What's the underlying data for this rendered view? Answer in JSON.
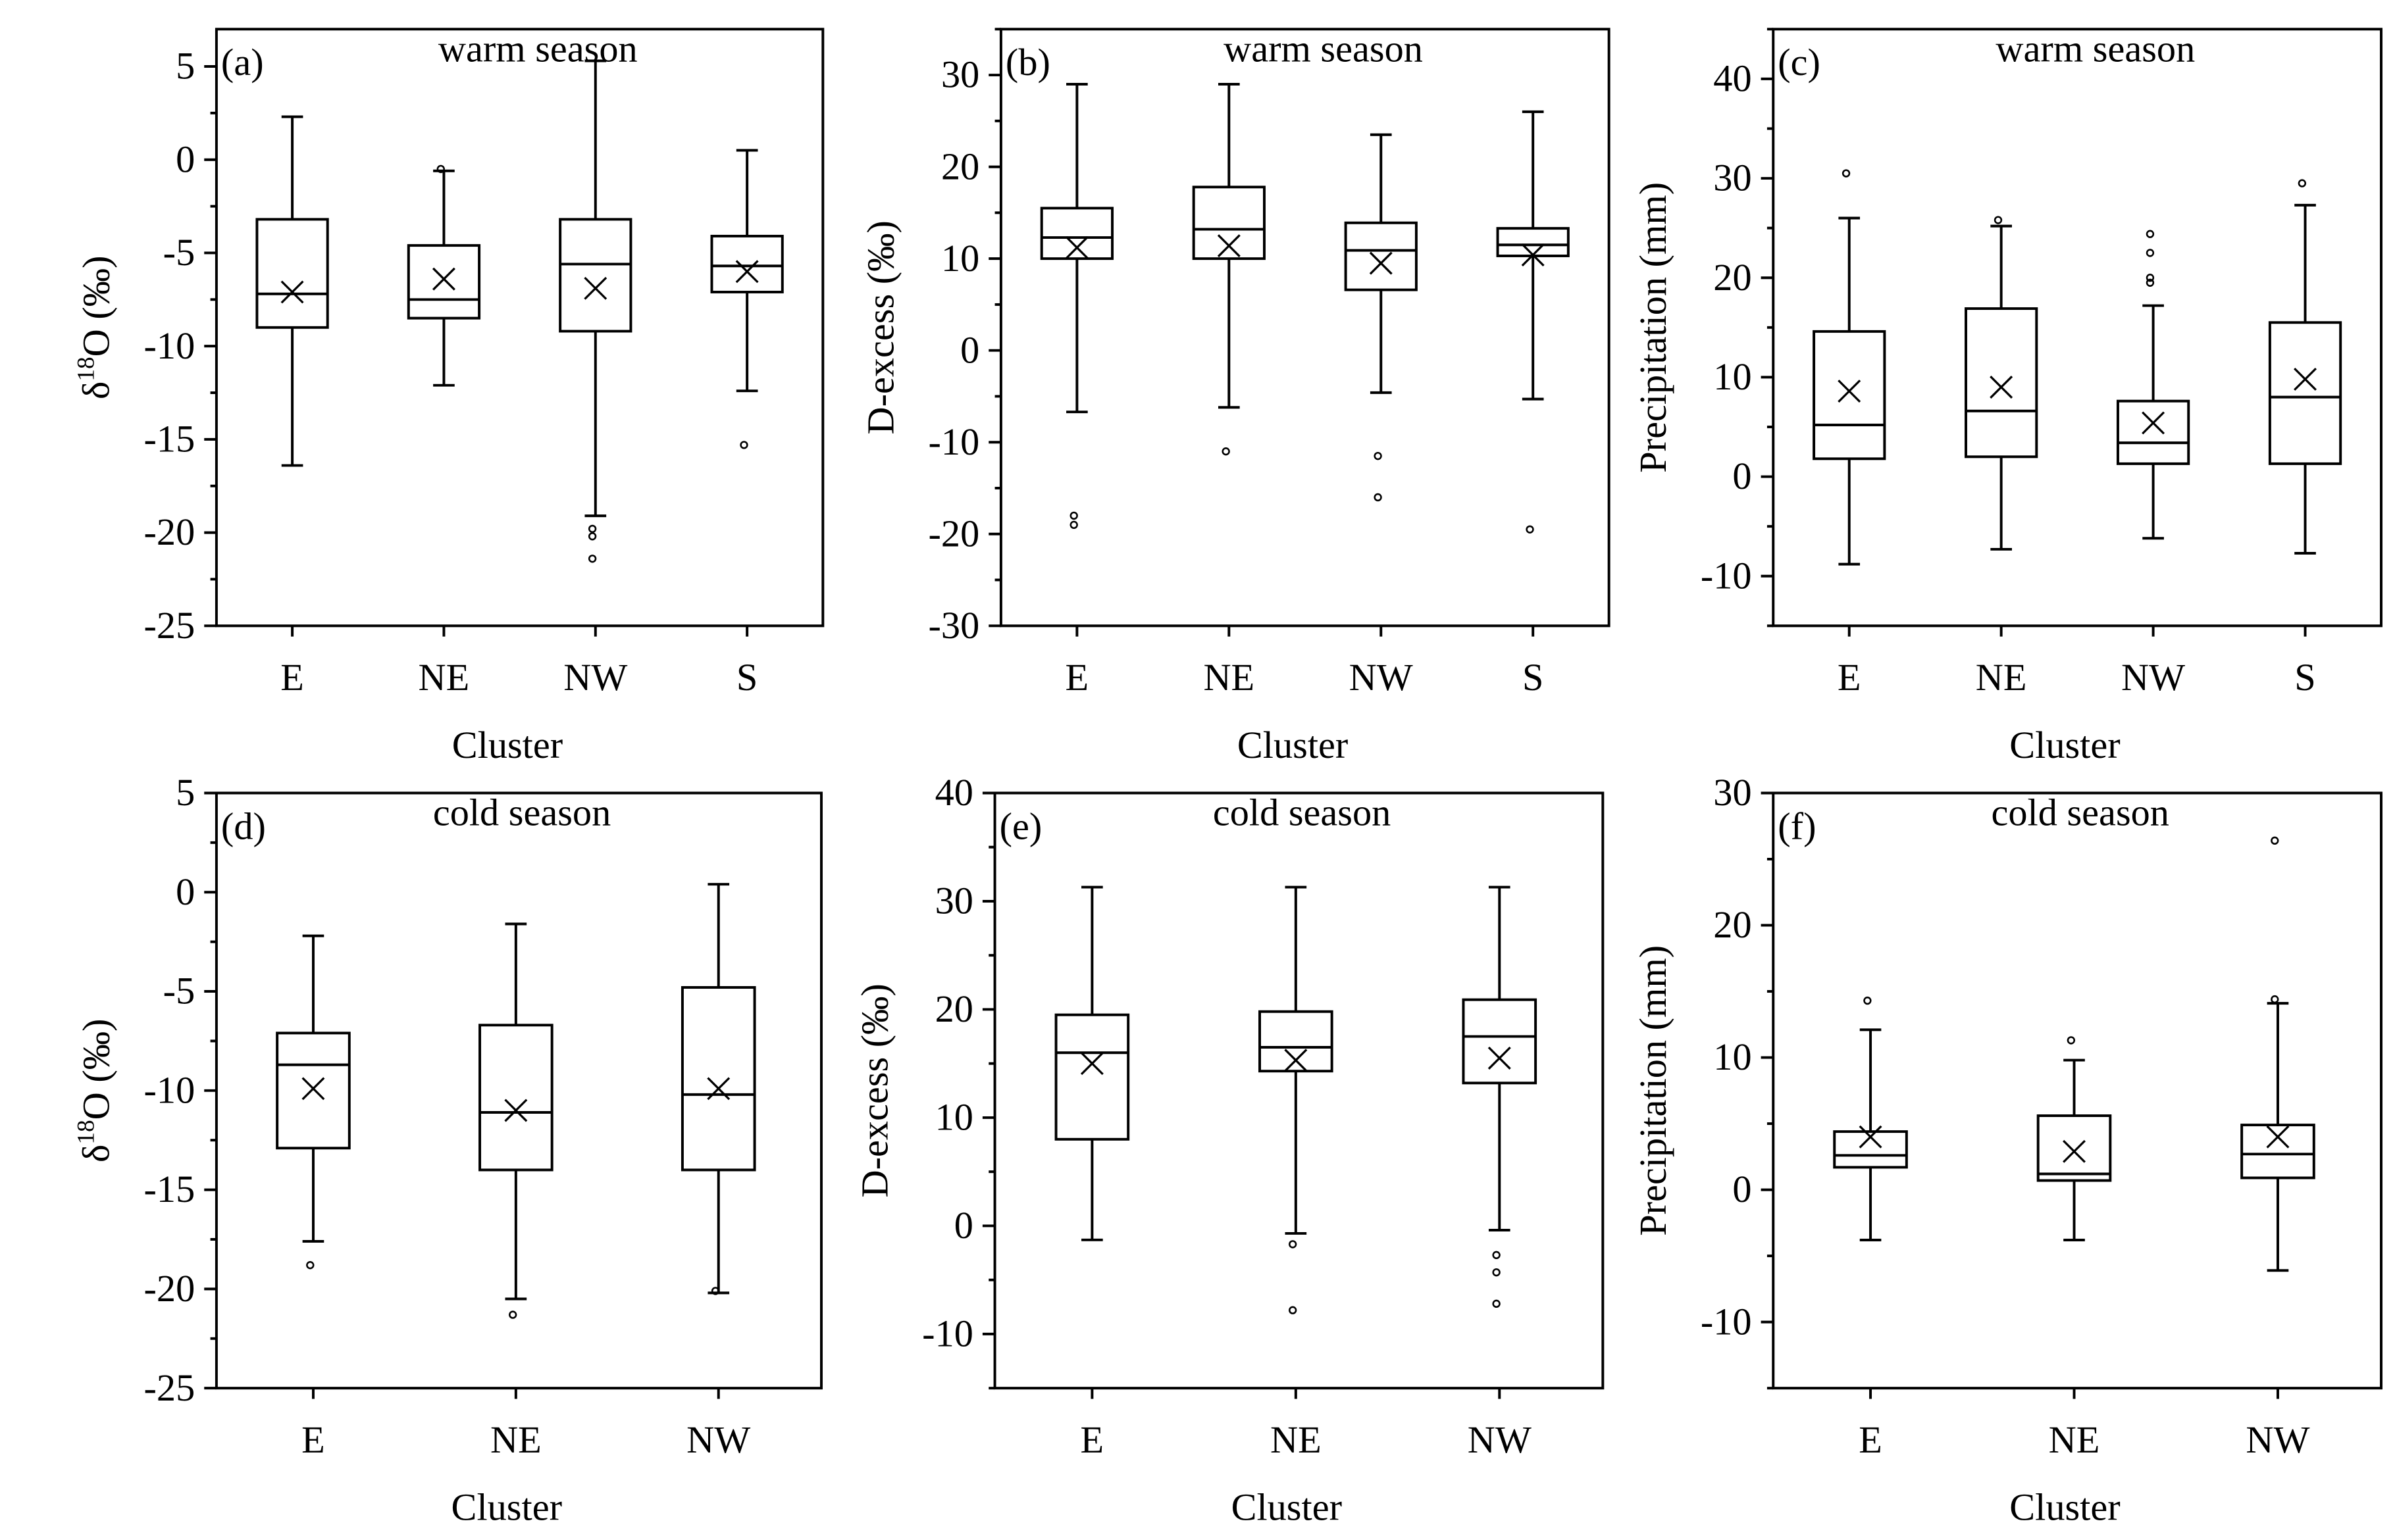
{
  "chart_data": [
    {
      "panel": "(a)",
      "title": "warm season",
      "type": "box",
      "xlabel": "Cluster",
      "ylabel": "δ18O (‰)",
      "ylabel_main": "δ",
      "ylabel_sup": "18",
      "ylabel_tail": "O (‰)",
      "ylim": [
        -25,
        7
      ],
      "yticks": [
        -25,
        -20,
        -15,
        -10,
        -5,
        0,
        5
      ],
      "categories": [
        "E",
        "NE",
        "NW",
        "S"
      ],
      "boxes": [
        {
          "q1": -9.0,
          "median": -7.2,
          "q3": -3.2,
          "whisker_low": -16.4,
          "whisker_high": 2.3,
          "mean": -7.1,
          "outliers": []
        },
        {
          "q1": -8.5,
          "median": -7.5,
          "q3": -4.6,
          "whisker_low": -12.1,
          "whisker_high": -0.6,
          "mean": -6.4,
          "outliers": [
            -0.5
          ]
        },
        {
          "q1": -9.2,
          "median": -5.6,
          "q3": -3.2,
          "whisker_low": -19.1,
          "whisker_high": 5.3,
          "mean": -6.9,
          "outliers": [
            -19.8,
            -20.2,
            -21.4
          ]
        },
        {
          "q1": -7.1,
          "median": -5.7,
          "q3": -4.1,
          "whisker_low": -12.4,
          "whisker_high": 0.5,
          "mean": -6.0,
          "outliers": [
            -15.3
          ]
        }
      ]
    },
    {
      "panel": "(b)",
      "title": "warm season",
      "type": "box",
      "xlabel": "Cluster",
      "ylabel": "D-excess (‰)",
      "ylim": [
        -30,
        35
      ],
      "yticks": [
        -30,
        -20,
        -10,
        0,
        10,
        20,
        30
      ],
      "categories": [
        "E",
        "NE",
        "NW",
        "S"
      ],
      "boxes": [
        {
          "q1": 10.0,
          "median": 12.3,
          "q3": 15.5,
          "whisker_low": -6.7,
          "whisker_high": 29.0,
          "mean": 11.2,
          "outliers": [
            -18.0,
            -19.0
          ]
        },
        {
          "q1": 10.0,
          "median": 13.2,
          "q3": 17.8,
          "whisker_low": -6.2,
          "whisker_high": 29.0,
          "mean": 11.4,
          "outliers": [
            -11.0
          ]
        },
        {
          "q1": 6.6,
          "median": 10.9,
          "q3": 13.9,
          "whisker_low": -4.6,
          "whisker_high": 23.5,
          "mean": 9.5,
          "outliers": [
            -11.5,
            -16.0
          ]
        },
        {
          "q1": 10.3,
          "median": 11.5,
          "q3": 13.3,
          "whisker_low": -5.3,
          "whisker_high": 26.0,
          "mean": 10.4,
          "outliers": [
            -19.5
          ]
        }
      ]
    },
    {
      "panel": "(c)",
      "title": "warm season",
      "type": "box",
      "xlabel": "Cluster",
      "ylabel": "Precipitation (mm)",
      "ylim": [
        -15,
        45
      ],
      "yticks": [
        -10,
        0,
        10,
        20,
        30,
        40
      ],
      "categories": [
        "E",
        "NE",
        "NW",
        "S"
      ],
      "boxes": [
        {
          "q1": 1.8,
          "median": 5.2,
          "q3": 14.6,
          "whisker_low": -8.8,
          "whisker_high": 26.0,
          "mean": 8.6,
          "outliers": [
            30.5
          ]
        },
        {
          "q1": 2.0,
          "median": 6.6,
          "q3": 16.9,
          "whisker_low": -7.3,
          "whisker_high": 25.2,
          "mean": 9.0,
          "outliers": [
            25.8
          ]
        },
        {
          "q1": 1.3,
          "median": 3.4,
          "q3": 7.6,
          "whisker_low": -6.2,
          "whisker_high": 17.2,
          "mean": 5.4,
          "outliers": [
            19.5,
            20.0,
            22.5,
            24.4
          ]
        },
        {
          "q1": 1.3,
          "median": 8.0,
          "q3": 15.5,
          "whisker_low": -7.7,
          "whisker_high": 27.3,
          "mean": 9.8,
          "outliers": [
            29.5
          ]
        }
      ]
    },
    {
      "panel": "(d)",
      "title": "cold season",
      "type": "box",
      "xlabel": "Cluster",
      "ylabel": "δ18O (‰)",
      "ylabel_main": "δ",
      "ylabel_sup": "18",
      "ylabel_tail": "O (‰)",
      "ylim": [
        -25,
        5
      ],
      "yticks": [
        -25,
        -20,
        -15,
        -10,
        -5,
        0,
        5
      ],
      "categories": [
        "E",
        "NE",
        "NW"
      ],
      "boxes": [
        {
          "q1": -12.9,
          "median": -8.7,
          "q3": -7.1,
          "whisker_low": -17.6,
          "whisker_high": -2.2,
          "mean": -9.9,
          "outliers": [
            -18.8
          ]
        },
        {
          "q1": -14.0,
          "median": -11.1,
          "q3": -6.7,
          "whisker_low": -20.5,
          "whisker_high": -1.6,
          "mean": -11.0,
          "outliers": [
            -21.3
          ]
        },
        {
          "q1": -14.0,
          "median": -10.2,
          "q3": -4.8,
          "whisker_low": -20.2,
          "whisker_high": 0.4,
          "mean": -9.9,
          "outliers": [
            -20.1
          ]
        }
      ]
    },
    {
      "panel": "(e)",
      "title": "cold season",
      "type": "box",
      "xlabel": "Cluster",
      "ylabel": "D-excess (‰)",
      "ylim": [
        -15,
        40
      ],
      "yticks": [
        -10,
        0,
        10,
        20,
        30,
        40
      ],
      "categories": [
        "E",
        "NE",
        "NW"
      ],
      "boxes": [
        {
          "q1": 8.0,
          "median": 16.0,
          "q3": 19.5,
          "whisker_low": -1.3,
          "whisker_high": 31.3,
          "mean": 15.0,
          "outliers": []
        },
        {
          "q1": 14.3,
          "median": 16.5,
          "q3": 19.8,
          "whisker_low": -0.7,
          "whisker_high": 31.3,
          "mean": 15.3,
          "outliers": [
            -1.7,
            -7.8
          ]
        },
        {
          "q1": 13.2,
          "median": 17.5,
          "q3": 20.9,
          "whisker_low": -0.4,
          "whisker_high": 31.3,
          "mean": 15.5,
          "outliers": [
            -2.7,
            -4.3,
            -7.2
          ]
        }
      ]
    },
    {
      "panel": "(f)",
      "title": "cold season",
      "type": "box",
      "xlabel": "Cluster",
      "ylabel": "Precipitation (mm)",
      "ylim": [
        -15,
        30
      ],
      "yticks": [
        -10,
        0,
        10,
        20,
        30
      ],
      "categories": [
        "E",
        "NE",
        "NW"
      ],
      "boxes": [
        {
          "q1": 1.7,
          "median": 2.6,
          "q3": 4.4,
          "whisker_low": -3.8,
          "whisker_high": 12.1,
          "mean": 4.0,
          "outliers": [
            14.3
          ]
        },
        {
          "q1": 0.7,
          "median": 1.2,
          "q3": 5.6,
          "whisker_low": -3.8,
          "whisker_high": 9.8,
          "mean": 2.9,
          "outliers": [
            11.3
          ]
        },
        {
          "q1": 0.9,
          "median": 2.7,
          "q3": 4.9,
          "whisker_low": -6.1,
          "whisker_high": 14.1,
          "mean": 4.0,
          "outliers": [
            14.4,
            26.4
          ]
        }
      ]
    }
  ]
}
